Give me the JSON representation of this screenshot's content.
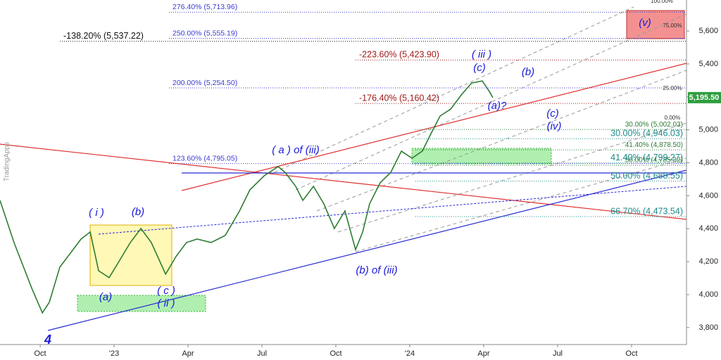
{
  "chart_data": {
    "type": "line",
    "watermark": "TradingApps",
    "x": [
      -1.63,
      -1.06,
      -0.34,
      0.09,
      0.37,
      0.8,
      1.23,
      1.66,
      2.03,
      2.37,
      2.8,
      3.23,
      3.66,
      4.09,
      4.51,
      5.09,
      5.51,
      5.94,
      6.37,
      6.94,
      7.51,
      8.09,
      8.51,
      9.09,
      9.66,
      9.94,
      10.37,
      10.66,
      11.09,
      11.51,
      11.94,
      12.37,
      12.8,
      13.09,
      13.37,
      13.8,
      14.23,
      14.66,
      15.09,
      15.51,
      15.86,
      16.23,
      16.66,
      17.09,
      17.51,
      17.94,
      18.23,
      18.37
    ],
    "series": [
      {
        "color": "#2e7d32",
        "values": [
          4572,
          4316,
          4039,
          3889,
          3953,
          4167,
          4252,
          4337,
          4380,
          4145,
          4103,
          4209,
          4316,
          4401,
          4316,
          4124,
          4231,
          4316,
          4337,
          4316,
          4359,
          4508,
          4636,
          4721,
          4777,
          4742,
          4657,
          4572,
          4657,
          4551,
          4401,
          4508,
          4273,
          4380,
          4551,
          4679,
          4742,
          4871,
          4828,
          4871,
          4977,
          5084,
          5126,
          5212,
          5284,
          5297,
          5233,
          5195.5
        ]
      }
    ],
    "xlim": [
      -1.63,
      26.23
    ],
    "xticks": [
      {
        "value": 0,
        "label": "Oct"
      },
      {
        "value": 3,
        "label": "'23"
      },
      {
        "value": 6,
        "label": "Apr"
      },
      {
        "value": 9,
        "label": "Jul"
      },
      {
        "value": 12,
        "label": "Oct"
      },
      {
        "value": 15,
        "label": "'24"
      },
      {
        "value": 18,
        "label": "Apr"
      },
      {
        "value": 21,
        "label": "Jul"
      },
      {
        "value": 24,
        "label": "Oct"
      }
    ],
    "ylim": [
      3697,
      5788
    ],
    "yticks": [
      {
        "value": 3800,
        "label": "3,800"
      },
      {
        "value": 4000,
        "label": "4,000"
      },
      {
        "value": 4200,
        "label": "4,200"
      },
      {
        "value": 4400,
        "label": "4,400"
      },
      {
        "value": 4600,
        "label": "4,600"
      },
      {
        "value": 4800,
        "label": "4,800"
      },
      {
        "value": 5000,
        "label": "5,000"
      },
      {
        "value": 5200,
        "label": "5,200"
      },
      {
        "value": 5400,
        "label": "5,400"
      },
      {
        "value": 5600,
        "label": "5,600"
      }
    ],
    "price_label": {
      "value": 5195.5,
      "label": "5,195.50"
    },
    "fib_levels_left": {
      "color": "#3a3ad0",
      "levels": [
        {
          "value": 5713.96,
          "label": "276.40% (5,713.96)"
        },
        {
          "value": 5555.19,
          "label": "250.00% (5,555.19)"
        },
        {
          "value": 5254.5,
          "label": "200.00% (5,254.50)"
        },
        {
          "value": 4795.05,
          "label": "123.60% (4,795.05)"
        }
      ]
    },
    "fib_levels_black": {
      "color": "#111111",
      "levels": [
        {
          "value": 5537.22,
          "label": "-138.20% (5,537.22)"
        }
      ]
    },
    "fib_levels_red": {
      "color": "#a01818",
      "levels": [
        {
          "value": 5423.9,
          "label": "-223.60% (5,423.90)"
        },
        {
          "value": 5160.42,
          "label": "-176.40% (5,160.42)"
        }
      ]
    },
    "fib_levels_right_small": {
      "color": "#2e7d32",
      "levels": [
        {
          "value": 5002.03,
          "label": "30.00% (5,002.03)"
        },
        {
          "value": 4878.5,
          "label": "41.40% (4,878.50)"
        },
        {
          "value": 4785.32,
          "label": "50.00% (4,785.32)"
        }
      ]
    },
    "fib_levels_right": {
      "color": "#1f8a8a",
      "levels": [
        {
          "value": 4946.03,
          "label": "30.00% (4,946.03)"
        },
        {
          "value": 4799.27,
          "label": "41.40% (4,799.27)"
        },
        {
          "value": 4688.55,
          "label": "50.00% (4,688.55)"
        },
        {
          "value": 4473.54,
          "label": "66.70% (4,473.54)"
        }
      ]
    },
    "fan_labels": [
      "100.00%",
      "75.00%",
      "25.00%",
      "0.00%"
    ],
    "wave_labels": [
      "( i )",
      "(b)",
      "(a)",
      "( c )",
      "( ii )",
      "( a ) of (iii)",
      "(b) of (iii)",
      "( iii )",
      "(c)",
      "(b)",
      "(a)?",
      "(c)",
      "(iv)",
      "(v)",
      "4"
    ]
  }
}
